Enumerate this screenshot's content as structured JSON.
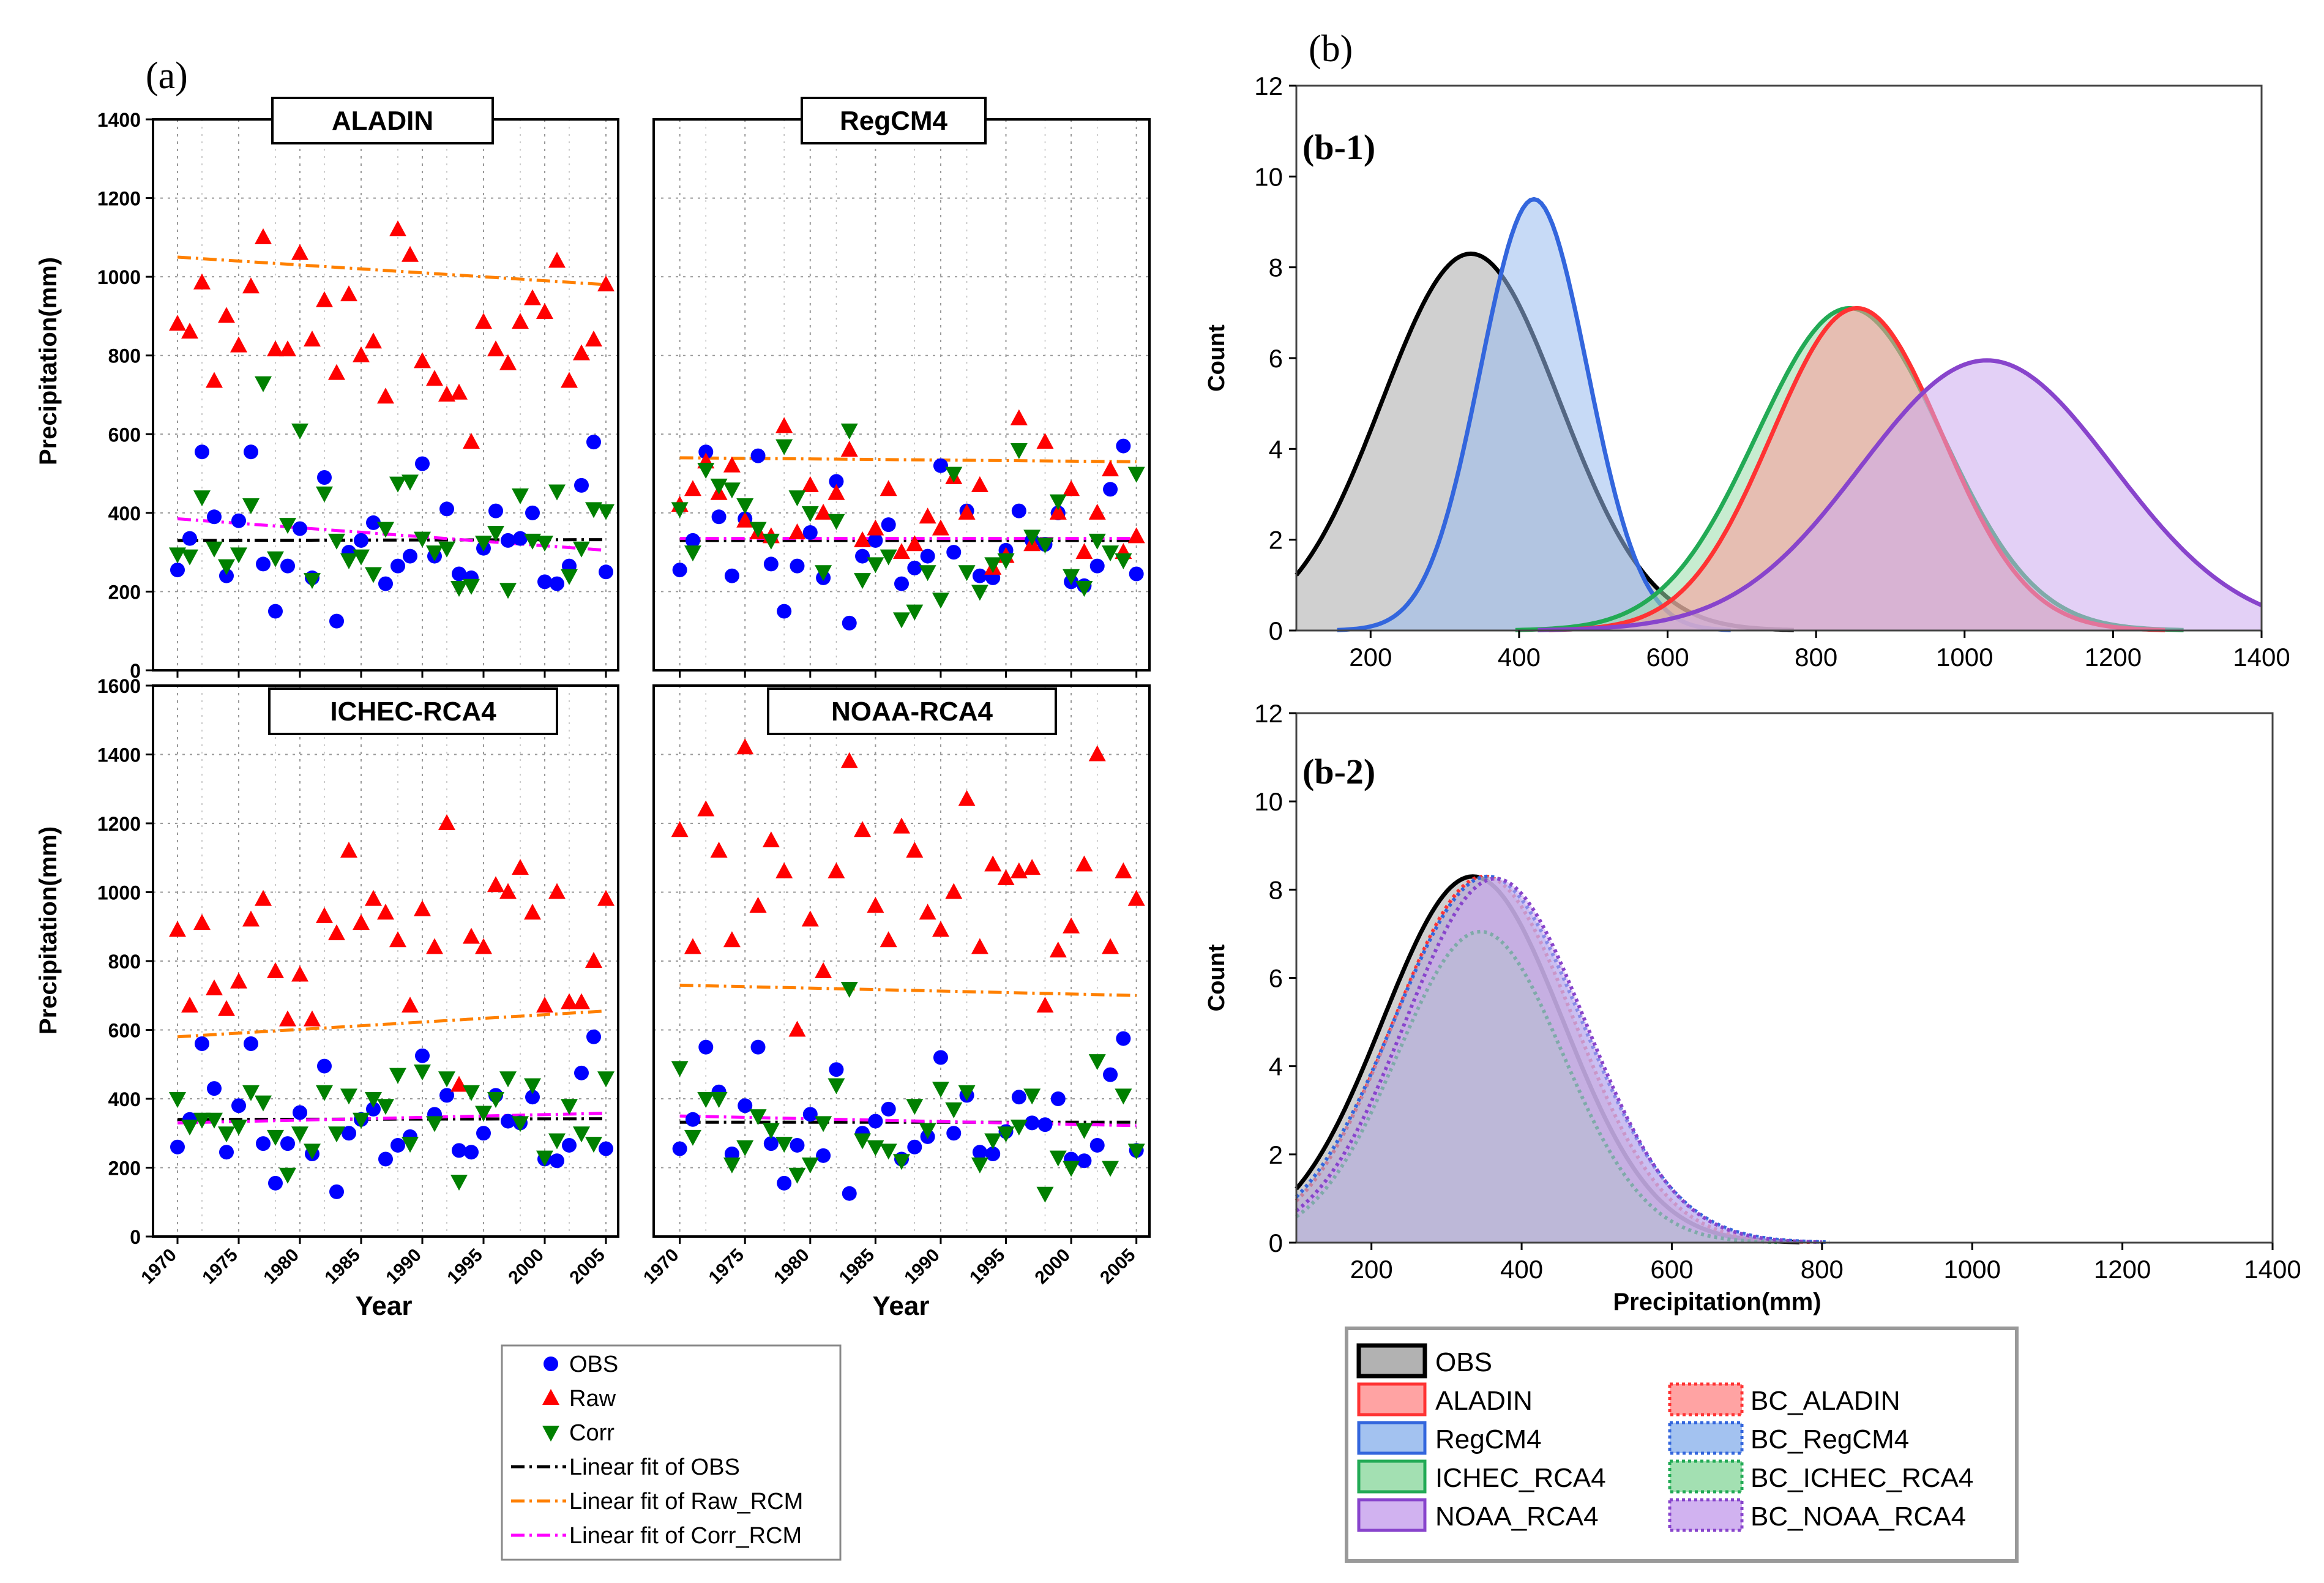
{
  "panel_a": {
    "label": "(a)",
    "ylabel": "Precipitation(mm)",
    "xlabel": "Year",
    "xticks": [
      1970,
      1975,
      1980,
      1985,
      1990,
      1995,
      2000,
      2005
    ],
    "top_yticks": [
      0,
      200,
      400,
      600,
      800,
      1000,
      1200,
      1400
    ],
    "bottom_yticks": [
      0,
      200,
      400,
      600,
      800,
      1000,
      1200,
      1400,
      1600
    ],
    "legend": [
      {
        "label": "OBS",
        "marker": "circle",
        "color": "#0000ff"
      },
      {
        "label": "Raw",
        "marker": "triangle-up",
        "color": "#ff0000"
      },
      {
        "label": "Corr",
        "marker": "triangle-down",
        "color": "#008000"
      },
      {
        "label": "Linear fit of OBS",
        "marker": "dashdot",
        "color": "#000000"
      },
      {
        "label": "Linear fit of Raw_RCM",
        "marker": "dashdot",
        "color": "#ff8000"
      },
      {
        "label": "Linear fit of Corr_RCM",
        "marker": "dashdot",
        "color": "#ff00ff"
      }
    ]
  },
  "panel_b": {
    "label": "(b)",
    "sub1": "(b-1)",
    "sub2": "(b-2)",
    "xlabel": "Precipitation(mm)",
    "ylabel": "Count",
    "xticks": [
      200,
      400,
      600,
      800,
      1000,
      1200,
      1400
    ],
    "yticks": [
      0,
      2,
      4,
      6,
      8,
      10,
      12
    ],
    "legend": [
      {
        "label": "OBS",
        "color": "#aaaaaa",
        "edge": "#000000",
        "dashed": false
      },
      {
        "label": "ALADIN",
        "color": "#ff9999",
        "edge": "#ff3333",
        "dashed": false
      },
      {
        "label": "BC_ALADIN",
        "color": "#ff9999",
        "edge": "#ff3333",
        "dashed": true
      },
      {
        "label": "RegCM4",
        "color": "#99bbee",
        "edge": "#3366dd",
        "dashed": false
      },
      {
        "label": "BC_RegCM4",
        "color": "#99bbee",
        "edge": "#3366dd",
        "dashed": true
      },
      {
        "label": "ICHEC_RCA4",
        "color": "#99ddaa",
        "edge": "#22aa55",
        "dashed": false
      },
      {
        "label": "BC_ICHEC_RCA4",
        "color": "#99ddaa",
        "edge": "#22aa55",
        "dashed": true
      },
      {
        "label": "NOAA_RCA4",
        "color": "#ccaaee",
        "edge": "#8844cc",
        "dashed": false
      },
      {
        "label": "BC_NOAA_RCA4",
        "color": "#ccaaee",
        "edge": "#8844cc",
        "dashed": true
      }
    ]
  },
  "chart_data": [
    {
      "type": "scatter",
      "title": "ALADIN",
      "xlabel": "Year",
      "ylabel": "Precipitation(mm)",
      "xlim": [
        1968,
        2006
      ],
      "ylim": [
        0,
        1400
      ],
      "x": [
        1970,
        1971,
        1972,
        1973,
        1974,
        1975,
        1976,
        1977,
        1978,
        1979,
        1980,
        1981,
        1982,
        1983,
        1984,
        1985,
        1986,
        1987,
        1988,
        1989,
        1990,
        1991,
        1992,
        1993,
        1994,
        1995,
        1996,
        1997,
        1998,
        1999,
        2000,
        2001,
        2002,
        2003,
        2004,
        2005
      ],
      "series": [
        {
          "name": "OBS",
          "values": [
            255,
            335,
            555,
            390,
            240,
            380,
            555,
            270,
            150,
            265,
            360,
            235,
            490,
            125,
            300,
            330,
            375,
            220,
            265,
            290,
            525,
            290,
            410,
            245,
            235,
            310,
            405,
            330,
            335,
            400,
            225,
            220,
            265,
            470,
            580,
            250
          ]
        },
        {
          "name": "Raw",
          "values": [
            880,
            860,
            985,
            735,
            900,
            825,
            975,
            1100,
            815,
            815,
            1060,
            840,
            940,
            755,
            955,
            800,
            835,
            695,
            1120,
            1055,
            785,
            740,
            700,
            705,
            580,
            885,
            815,
            780,
            885,
            945,
            910,
            1040,
            735,
            805,
            840,
            980
          ]
        },
        {
          "name": "Corr",
          "values": [
            295,
            290,
            440,
            310,
            265,
            295,
            420,
            730,
            285,
            370,
            610,
            230,
            450,
            330,
            280,
            290,
            245,
            360,
            475,
            480,
            335,
            300,
            310,
            210,
            215,
            325,
            350,
            205,
            445,
            330,
            325,
            455,
            240,
            310,
            410,
            405
          ]
        }
      ],
      "fits": [
        {
          "name": "Linear fit of OBS",
          "start": 330,
          "end": 332
        },
        {
          "name": "Linear fit of Raw_RCM",
          "start": 1050,
          "end": 980
        },
        {
          "name": "Linear fit of Corr_RCM",
          "start": 385,
          "end": 305
        }
      ]
    },
    {
      "type": "scatter",
      "title": "RegCM4",
      "xlabel": "Year",
      "ylabel": "Precipitation(mm)",
      "xlim": [
        1968,
        2006
      ],
      "ylim": [
        0,
        1400
      ],
      "x": [
        1970,
        1971,
        1972,
        1973,
        1974,
        1975,
        1976,
        1977,
        1978,
        1979,
        1980,
        1981,
        1982,
        1983,
        1984,
        1985,
        1986,
        1987,
        1988,
        1989,
        1990,
        1991,
        1992,
        1993,
        1994,
        1995,
        1996,
        1997,
        1998,
        1999,
        2000,
        2001,
        2002,
        2003,
        2004,
        2005
      ],
      "series": [
        {
          "name": "OBS",
          "values": [
            255,
            330,
            555,
            390,
            240,
            385,
            545,
            270,
            150,
            265,
            350,
            235,
            480,
            120,
            290,
            330,
            370,
            220,
            260,
            290,
            520,
            300,
            405,
            240,
            235,
            305,
            405,
            330,
            320,
            400,
            225,
            215,
            265,
            460,
            570,
            245
          ]
        },
        {
          "name": "Raw",
          "values": [
            420,
            460,
            530,
            450,
            520,
            380,
            350,
            340,
            620,
            350,
            470,
            400,
            450,
            560,
            330,
            360,
            460,
            300,
            320,
            390,
            360,
            490,
            400,
            470,
            260,
            290,
            640,
            320,
            580,
            400,
            460,
            300,
            400,
            510,
            300,
            340
          ]
        },
        {
          "name": "Corr",
          "values": [
            410,
            300,
            510,
            470,
            460,
            420,
            360,
            330,
            570,
            440,
            400,
            250,
            380,
            610,
            230,
            270,
            290,
            130,
            150,
            250,
            180,
            500,
            250,
            200,
            270,
            280,
            560,
            340,
            320,
            430,
            240,
            210,
            330,
            300,
            280,
            500
          ]
        }
      ],
      "fits": [
        {
          "name": "Linear fit of OBS",
          "start": 330,
          "end": 330
        },
        {
          "name": "Linear fit of Raw_RCM",
          "start": 540,
          "end": 530
        },
        {
          "name": "Linear fit of Corr_RCM",
          "start": 335,
          "end": 335
        }
      ]
    },
    {
      "type": "scatter",
      "title": "ICHEC-RCA4",
      "xlabel": "Year",
      "ylabel": "Precipitation(mm)",
      "xlim": [
        1968,
        2006
      ],
      "ylim": [
        0,
        1600
      ],
      "x": [
        1970,
        1971,
        1972,
        1973,
        1974,
        1975,
        1976,
        1977,
        1978,
        1979,
        1980,
        1981,
        1982,
        1983,
        1984,
        1985,
        1986,
        1987,
        1988,
        1989,
        1990,
        1991,
        1992,
        1993,
        1994,
        1995,
        1996,
        1997,
        1998,
        1999,
        2000,
        2001,
        2002,
        2003,
        2004,
        2005
      ],
      "series": [
        {
          "name": "OBS",
          "values": [
            260,
            340,
            560,
            430,
            245,
            380,
            560,
            270,
            155,
            270,
            360,
            240,
            495,
            130,
            300,
            340,
            370,
            225,
            265,
            290,
            525,
            355,
            410,
            250,
            245,
            300,
            410,
            335,
            330,
            405,
            225,
            220,
            265,
            475,
            580,
            255
          ]
        },
        {
          "name": "Raw",
          "values": [
            890,
            670,
            910,
            720,
            660,
            740,
            920,
            980,
            770,
            630,
            760,
            630,
            930,
            880,
            1120,
            910,
            980,
            940,
            860,
            670,
            950,
            840,
            1200,
            440,
            870,
            840,
            1020,
            1000,
            1070,
            940,
            670,
            1000,
            680,
            680,
            800,
            980
          ]
        },
        {
          "name": "Corr",
          "values": [
            400,
            320,
            340,
            340,
            300,
            320,
            420,
            390,
            290,
            180,
            300,
            250,
            420,
            300,
            410,
            340,
            400,
            380,
            470,
            270,
            480,
            330,
            460,
            160,
            420,
            360,
            400,
            460,
            330,
            440,
            230,
            280,
            380,
            300,
            270,
            460
          ]
        }
      ],
      "fits": [
        {
          "name": "Linear fit of OBS",
          "start": 340,
          "end": 342
        },
        {
          "name": "Linear fit of Raw_RCM",
          "start": 580,
          "end": 655
        },
        {
          "name": "Linear fit of Corr_RCM",
          "start": 330,
          "end": 358
        }
      ]
    },
    {
      "type": "scatter",
      "title": "NOAA-RCA4",
      "xlabel": "Year",
      "ylabel": "Precipitation(mm)",
      "xlim": [
        1968,
        2006
      ],
      "ylim": [
        0,
        1600
      ],
      "x": [
        1970,
        1971,
        1972,
        1973,
        1974,
        1975,
        1976,
        1977,
        1978,
        1979,
        1980,
        1981,
        1982,
        1983,
        1984,
        1985,
        1986,
        1987,
        1988,
        1989,
        1990,
        1991,
        1992,
        1993,
        1994,
        1995,
        1996,
        1997,
        1998,
        1999,
        2000,
        2001,
        2002,
        2003,
        2004,
        2005
      ],
      "series": [
        {
          "name": "OBS",
          "values": [
            255,
            340,
            550,
            420,
            240,
            380,
            550,
            270,
            155,
            265,
            355,
            235,
            485,
            125,
            300,
            335,
            370,
            225,
            260,
            290,
            520,
            300,
            410,
            245,
            240,
            305,
            405,
            330,
            325,
            400,
            225,
            220,
            265,
            470,
            575,
            250
          ]
        },
        {
          "name": "Raw",
          "values": [
            1180,
            840,
            1240,
            1120,
            860,
            1420,
            960,
            1150,
            1060,
            600,
            920,
            770,
            1060,
            1380,
            1180,
            960,
            860,
            1190,
            1120,
            940,
            890,
            1000,
            1270,
            840,
            1080,
            1040,
            1060,
            1070,
            670,
            830,
            900,
            1080,
            1400,
            840,
            1060,
            980
          ]
        },
        {
          "name": "Corr",
          "values": [
            490,
            290,
            400,
            400,
            210,
            260,
            350,
            310,
            270,
            180,
            210,
            330,
            440,
            720,
            280,
            260,
            250,
            220,
            380,
            310,
            430,
            370,
            420,
            210,
            280,
            300,
            320,
            410,
            125,
            230,
            200,
            310,
            510,
            200,
            410,
            250
          ]
        }
      ],
      "fits": [
        {
          "name": "Linear fit of OBS",
          "start": 332,
          "end": 332
        },
        {
          "name": "Linear fit of Raw_RCM",
          "start": 730,
          "end": 700
        },
        {
          "name": "Linear fit of Corr_RCM",
          "start": 350,
          "end": 322
        }
      ]
    },
    {
      "type": "area",
      "title": "(b-1)",
      "xlabel": "",
      "ylabel": "Count",
      "xlim": [
        100,
        1400
      ],
      "ylim": [
        0,
        12
      ],
      "series": [
        {
          "name": "OBS",
          "mean": 335,
          "peak": 8.3,
          "sd": 120
        },
        {
          "name": "RegCM4",
          "mean": 420,
          "peak": 9.5,
          "sd": 72
        },
        {
          "name": "ICHEC_RCA4",
          "mean": 845,
          "peak": 7.1,
          "sd": 125
        },
        {
          "name": "ALADIN",
          "mean": 855,
          "peak": 7.1,
          "sd": 115
        },
        {
          "name": "NOAA_RCA4",
          "mean": 1030,
          "peak": 5.95,
          "sd": 170
        }
      ]
    },
    {
      "type": "area",
      "title": "(b-2)",
      "xlabel": "Precipitation(mm)",
      "ylabel": "Count",
      "xlim": [
        100,
        1400
      ],
      "ylim": [
        0,
        12
      ],
      "series": [
        {
          "name": "OBS",
          "mean": 335,
          "peak": 8.3,
          "sd": 120
        },
        {
          "name": "BC_ALADIN",
          "mean": 350,
          "peak": 8.3,
          "sd": 120
        },
        {
          "name": "BC_RegCM4",
          "mean": 355,
          "peak": 8.3,
          "sd": 125
        },
        {
          "name": "BC_ICHEC_RCA4",
          "mean": 345,
          "peak": 7.05,
          "sd": 110
        },
        {
          "name": "BC_NOAA_RCA4",
          "mean": 365,
          "peak": 8.25,
          "sd": 120
        }
      ]
    }
  ]
}
